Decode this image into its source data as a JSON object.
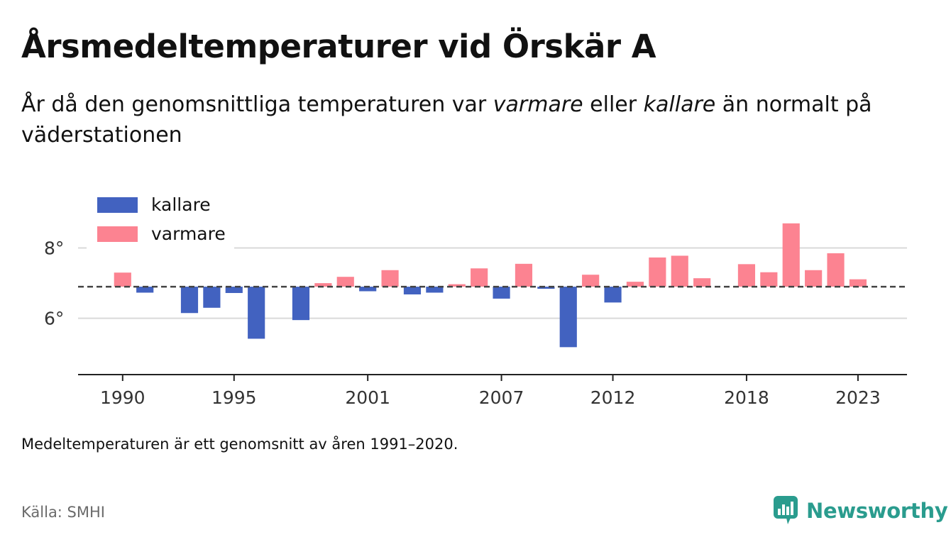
{
  "title": "Årsmedeltemperaturer vid Örskär A",
  "subtitle": {
    "part1": "År då den genomsnittliga temperaturen var ",
    "warmer_word": "varmare",
    "part2": " eller ",
    "colder_word": "kallare",
    "part3": " än normalt på väderstationen"
  },
  "note": "Medeltemperaturen är ett genomsnitt av åren 1991–2020.",
  "source": "Källa: SMHI",
  "brand": "Newsworthy",
  "colors": {
    "colder": "#4262c0",
    "warmer": "#fc8391",
    "brand": "#2a9c8e",
    "grid": "#d9d9d9",
    "axis": "#222222",
    "baseline": "#444444"
  },
  "chart_data": {
    "type": "bar",
    "baseline": 6.9,
    "ylim": [
      4.4,
      9.1
    ],
    "yticks": [
      6,
      8
    ],
    "ytick_labels": [
      "6°",
      "8°"
    ],
    "xticks": [
      1990,
      1995,
      2001,
      2007,
      2012,
      2018,
      2023
    ],
    "xlim": [
      1988,
      2025.2
    ],
    "legend": [
      {
        "key": "colder",
        "label": "kallare"
      },
      {
        "key": "warmer",
        "label": "varmare"
      }
    ],
    "legend_position": "top-left",
    "years": [
      1990,
      1991,
      1993,
      1994,
      1995,
      1996,
      1998,
      1999,
      2000,
      2001,
      2002,
      2003,
      2004,
      2005,
      2006,
      2007,
      2008,
      2009,
      2010,
      2011,
      2012,
      2013,
      2014,
      2015,
      2016,
      2018,
      2019,
      2020,
      2021,
      2022,
      2023
    ],
    "values": [
      7.3,
      6.73,
      6.15,
      6.3,
      6.72,
      5.42,
      5.95,
      7.0,
      7.18,
      6.77,
      7.37,
      6.68,
      6.73,
      6.97,
      7.42,
      6.56,
      7.55,
      6.84,
      5.18,
      7.24,
      6.45,
      7.04,
      7.73,
      7.78,
      7.14,
      7.54,
      7.31,
      8.7,
      7.37,
      7.85,
      7.11
    ]
  }
}
